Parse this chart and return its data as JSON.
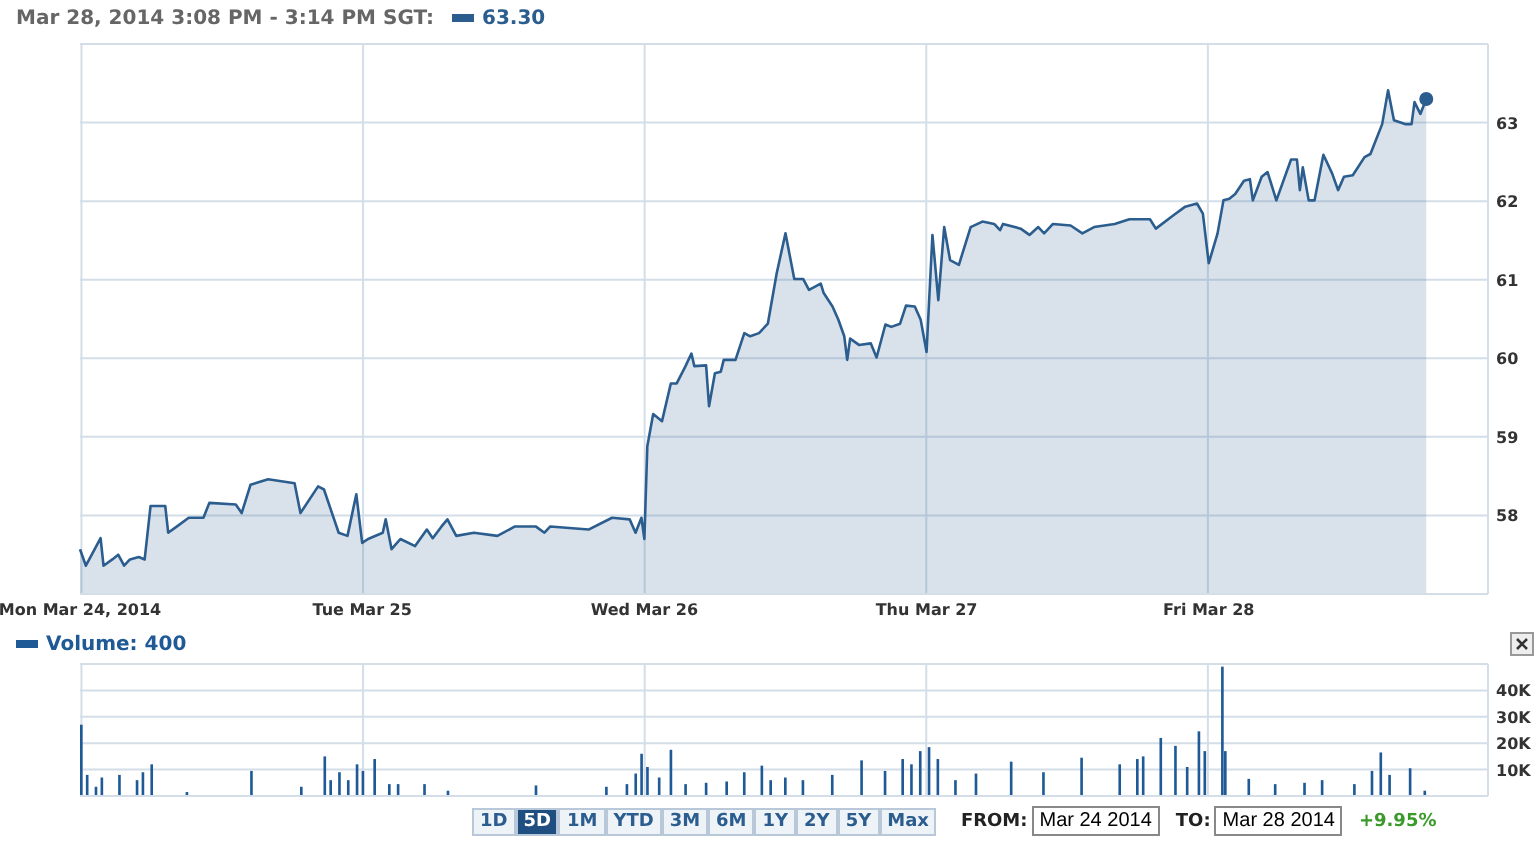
{
  "chart_data": [
    {
      "type": "area",
      "title": "Mar 28, 2014 3:08 PM - 3:14 PM SGT:",
      "legend": "top left",
      "grid": true,
      "categories": [
        "Mon Mar 24, 2014",
        null,
        null,
        null,
        null,
        null,
        null,
        null,
        null,
        null,
        null,
        null,
        null,
        null,
        null,
        null,
        null,
        null,
        null,
        null,
        null,
        null,
        null,
        null,
        null,
        null,
        null,
        null,
        null,
        null,
        null,
        null,
        null,
        null,
        null,
        null,
        null,
        null,
        null,
        null,
        null,
        null,
        null,
        null,
        null,
        null,
        null,
        null,
        null,
        null,
        null,
        null,
        null,
        null,
        null,
        null,
        null,
        null,
        null,
        null,
        null,
        null,
        null,
        null,
        null,
        null,
        null,
        null,
        null,
        null,
        null,
        null,
        null,
        null,
        null,
        null,
        null,
        null,
        null,
        null,
        null,
        null,
        null,
        null,
        null,
        null,
        null,
        null,
        null,
        null,
        null,
        null,
        null,
        null,
        null,
        null,
        "Tue Mar 25",
        null,
        null,
        null,
        null,
        null,
        null,
        null,
        null,
        null,
        null,
        null,
        null,
        null,
        null,
        null,
        null,
        null,
        null,
        null,
        null,
        null,
        null,
        null,
        null,
        null,
        null,
        null,
        null,
        null,
        null,
        null,
        null,
        null,
        null,
        null,
        null,
        null,
        null,
        null,
        null,
        null,
        null,
        null,
        null,
        null,
        null,
        null,
        null,
        null,
        null,
        null,
        null,
        null,
        null,
        null,
        null,
        null,
        null,
        null,
        null,
        null,
        null,
        null,
        null,
        null,
        null,
        null,
        null,
        null,
        null,
        null,
        null,
        null,
        null,
        null,
        null,
        null,
        null,
        null,
        null,
        null,
        null,
        null,
        null,
        null,
        null,
        null,
        null,
        null,
        null,
        null,
        null,
        null,
        null,
        null,
        "Wed Mar 26",
        null,
        null,
        null,
        null,
        null,
        null,
        null,
        null,
        null,
        null,
        null,
        null,
        null,
        null,
        null,
        null,
        null,
        null,
        null,
        null,
        null,
        null,
        null,
        null,
        null,
        null,
        null,
        null,
        null,
        null,
        null,
        null,
        null,
        null,
        null,
        null,
        null,
        null,
        null,
        null,
        null,
        null,
        null,
        null,
        null,
        null,
        null,
        null,
        null,
        null,
        null,
        null,
        null,
        null,
        null,
        null,
        null,
        null,
        null,
        null,
        null,
        null,
        null,
        null,
        null,
        null,
        null,
        null,
        null,
        null,
        null,
        null,
        null,
        null,
        null,
        null,
        null,
        null,
        null,
        null,
        null,
        null,
        null,
        null,
        null,
        null,
        null,
        null,
        null,
        null,
        null,
        null,
        null,
        null,
        null,
        "Thu Mar 27",
        null,
        null,
        null,
        null,
        null,
        null,
        null,
        null,
        null,
        null,
        null,
        null,
        null,
        null,
        null,
        null,
        null,
        null,
        null,
        null,
        null,
        null,
        null,
        null,
        null,
        null,
        null,
        null,
        null,
        null,
        null,
        null,
        null,
        null,
        null,
        null,
        null,
        null,
        null,
        null,
        null,
        null,
        null,
        null,
        null,
        null,
        null,
        null,
        null,
        null,
        null,
        null,
        null,
        null,
        null,
        null,
        null,
        null,
        null,
        null,
        null,
        null,
        null,
        null,
        null,
        null,
        null,
        null,
        null,
        null,
        null,
        null,
        null,
        null,
        null,
        null,
        null,
        null,
        null,
        null,
        null,
        null,
        null,
        null,
        null,
        null,
        null,
        null,
        null,
        null,
        null,
        null,
        null,
        null,
        null,
        "Fri Mar 28",
        null,
        null,
        null,
        null,
        null,
        null,
        null,
        null,
        null,
        null,
        null,
        null,
        null,
        null,
        null,
        null,
        null,
        null,
        null,
        null,
        null,
        null,
        null,
        null,
        null,
        null,
        null,
        null,
        null,
        null,
        null,
        null,
        null,
        null,
        null,
        null,
        null,
        null,
        null,
        null,
        null,
        null,
        null,
        null,
        null,
        null,
        null,
        null,
        null,
        null,
        null,
        null,
        null,
        null,
        null,
        null,
        null,
        null,
        null,
        null,
        null,
        null,
        null,
        null,
        null,
        null,
        null,
        null,
        null,
        null,
        null,
        null,
        null,
        null,
        null,
        null,
        null,
        null,
        null,
        null,
        null,
        null,
        null,
        null,
        null,
        null,
        null,
        null,
        null,
        null,
        null,
        null,
        null,
        null,
        null
      ],
      "ylim": [
        57,
        64
      ],
      "yticks": [
        58,
        59,
        60,
        61,
        62,
        63
      ],
      "series": [
        {
          "name": "63.30",
          "color": "#2c5d8f",
          "values": [
            57.57,
            null,
            57.36,
            null,
            null,
            57.57,
            null,
            57.71,
            57.36,
            null,
            null,
            57.44,
            null,
            57.5,
            null,
            57.36,
            null,
            57.44,
            null,
            null,
            57.47,
            null,
            57.44,
            null,
            58.12,
            null,
            null,
            null,
            null,
            58.12,
            57.78,
            null,
            null,
            57.86,
            null,
            null,
            null,
            57.97,
            null,
            null,
            null,
            null,
            57.97,
            null,
            58.16,
            null,
            null,
            null,
            null,
            null,
            null,
            null,
            null,
            58.14,
            null,
            58.03,
            null,
            null,
            58.39,
            null,
            null,
            null,
            null,
            null,
            58.46,
            null,
            null,
            null,
            null,
            null,
            null,
            null,
            null,
            58.41,
            null,
            58.03,
            null,
            null,
            null,
            null,
            null,
            58.37,
            null,
            58.33,
            null,
            null,
            null,
            null,
            57.78,
            null,
            null,
            57.74,
            null,
            null,
            58.27,
            null,
            57.65,
            null,
            57.7,
            null,
            null,
            null,
            null,
            57.78,
            57.95,
            null,
            57.57,
            null,
            null,
            57.7,
            null,
            null,
            null,
            null,
            57.61,
            null,
            null,
            null,
            57.82,
            null,
            57.71,
            null,
            null,
            57.86,
            null,
            57.95,
            null,
            null,
            57.74,
            null,
            null,
            null,
            null,
            null,
            57.78,
            null,
            null,
            null,
            null,
            null,
            null,
            null,
            57.74,
            null,
            null,
            null,
            null,
            null,
            57.86,
            null,
            null,
            null,
            null,
            null,
            null,
            57.86,
            null,
            null,
            57.78,
            null,
            57.86,
            null,
            null,
            null,
            null,
            null,
            null,
            null,
            null,
            null,
            null,
            null,
            null,
            57.82,
            null,
            null,
            null,
            null,
            null,
            null,
            null,
            57.97,
            null,
            null,
            null,
            null,
            null,
            57.95,
            null,
            57.78,
            null,
            57.97,
            57.7,
            58.88,
            null,
            59.29,
            null,
            null,
            59.2,
            null,
            null,
            59.68,
            null,
            59.68,
            null,
            null,
            59.9,
            null,
            60.06,
            59.9,
            null,
            null,
            null,
            59.91,
            59.39,
            null,
            59.81,
            null,
            59.83,
            59.98,
            null,
            null,
            null,
            59.98,
            null,
            null,
            60.32,
            null,
            60.28,
            null,
            null,
            60.32,
            null,
            null,
            60.44,
            null,
            null,
            61.08,
            null,
            null,
            61.59,
            null,
            null,
            61.01,
            null,
            null,
            61.01,
            null,
            60.87,
            null,
            null,
            null,
            60.95,
            60.83,
            null,
            null,
            60.66,
            null,
            60.49,
            null,
            60.28,
            59.98,
            60.25,
            null,
            null,
            60.17,
            null,
            null,
            null,
            60.19,
            null,
            60.01,
            null,
            null,
            60.43,
            null,
            60.4,
            null,
            null,
            60.44,
            null,
            60.67,
            null,
            null,
            60.66,
            null,
            60.49,
            null,
            60.08,
            null,
            61.57,
            null,
            60.74,
            null,
            61.67,
            null,
            61.25,
            null,
            null,
            61.19,
            null,
            null,
            null,
            61.67,
            null,
            null,
            null,
            61.74,
            null,
            null,
            null,
            61.71,
            null,
            61.63,
            61.71,
            null,
            null,
            null,
            null,
            null,
            61.65,
            null,
            null,
            61.57,
            null,
            null,
            61.67,
            null,
            61.59,
            null,
            null,
            61.71,
            null,
            null,
            null,
            null,
            null,
            61.69,
            null,
            null,
            null,
            61.59,
            null,
            null,
            null,
            61.67,
            null,
            null,
            null,
            null,
            null,
            null,
            61.71,
            null,
            null,
            null,
            null,
            61.77,
            null,
            null,
            null,
            null,
            null,
            null,
            61.77,
            null,
            61.65,
            null,
            null,
            null,
            null,
            null,
            61.82,
            null,
            null,
            null,
            61.93,
            null,
            null,
            null,
            61.97,
            null,
            61.84,
            null,
            61.21,
            null,
            null,
            61.59,
            null,
            62.01,
            null,
            62.03,
            null,
            62.09,
            null,
            null,
            62.26,
            null,
            62.28,
            62.01,
            null,
            null,
            62.31,
            null,
            62.37,
            null,
            null,
            62.01,
            null,
            null,
            null,
            null,
            62.53,
            null,
            62.53,
            62.14,
            62.43,
            null,
            62.01,
            null,
            62.01,
            null,
            null,
            62.59,
            null,
            null,
            62.35,
            null,
            62.14,
            null,
            62.31,
            null,
            null,
            62.33,
            null,
            null,
            null,
            62.56,
            null,
            62.6,
            null,
            null,
            null,
            62.98,
            null,
            63.41,
            null,
            63.03,
            null,
            null,
            null,
            62.98,
            null,
            62.98,
            63.26,
            null,
            63.11,
            null,
            63.3,
            null,
            null,
            null,
            null,
            null,
            null,
            null,
            null,
            null,
            null,
            null,
            null,
            null,
            null,
            null,
            null,
            null,
            null,
            null,
            null,
            null
          ]
        }
      ]
    },
    {
      "type": "bar",
      "legend": "top left",
      "grid": true,
      "tick_labels": "y",
      "categories": [
        null,
        null,
        null,
        null,
        null,
        null,
        null,
        null,
        null,
        null,
        null,
        null,
        null,
        null,
        null,
        null,
        null,
        null,
        null,
        null,
        null,
        null,
        null,
        null,
        null,
        null,
        null,
        null,
        null,
        null,
        null,
        null,
        null,
        null,
        null,
        null,
        null,
        null,
        null,
        null,
        null,
        null,
        null,
        null,
        null,
        null,
        null,
        null,
        null,
        null,
        null,
        null,
        null,
        null,
        null,
        null,
        null,
        null,
        null,
        null,
        null,
        null,
        null,
        null,
        null,
        null,
        null,
        null,
        null,
        null,
        null,
        null,
        null,
        null,
        null,
        null,
        null,
        null,
        null,
        null,
        null,
        null,
        null,
        null,
        null,
        null,
        null,
        null,
        null,
        null,
        null,
        null,
        null,
        null,
        null,
        null,
        null,
        null,
        null,
        null,
        null,
        null,
        null,
        null,
        null,
        null,
        null,
        null,
        null,
        null,
        null,
        null,
        null,
        null,
        null,
        null,
        null,
        null,
        null,
        null,
        null,
        null,
        null,
        null,
        null,
        null,
        null,
        null,
        null,
        null,
        null,
        null,
        null,
        null,
        null,
        null,
        null,
        null,
        null,
        null,
        null,
        null,
        null,
        null,
        null,
        null,
        null,
        null,
        null,
        null,
        null,
        null,
        null,
        null,
        null,
        null,
        null,
        null,
        null,
        null,
        null,
        null,
        null,
        null,
        null,
        null,
        null,
        null,
        null,
        null,
        null,
        null,
        null,
        null,
        null,
        null,
        null,
        null,
        null,
        null,
        null,
        null,
        null,
        null,
        null,
        null,
        null,
        null,
        null,
        null,
        null,
        null,
        null,
        null,
        null,
        null,
        null,
        null,
        null,
        null,
        null,
        null,
        null,
        null,
        null,
        null,
        null,
        null,
        null,
        null,
        null,
        null,
        null,
        null,
        null,
        null,
        null,
        null,
        null,
        null,
        null,
        null,
        null,
        null,
        null,
        null,
        null,
        null,
        null,
        null,
        null,
        null,
        null,
        null,
        null,
        null,
        null,
        null,
        null,
        null,
        null,
        null,
        null,
        null,
        null,
        null,
        null,
        null,
        null,
        null,
        null,
        null,
        null,
        null,
        null,
        null,
        null,
        null,
        null,
        null,
        null,
        null,
        null,
        null,
        null,
        null,
        null,
        null,
        null,
        null,
        null,
        null,
        null,
        null,
        null,
        null,
        null,
        null,
        null,
        null,
        null,
        null,
        null,
        null,
        null,
        null,
        null,
        null,
        null,
        null,
        null,
        null,
        null,
        null,
        null,
        null,
        null,
        null,
        null,
        null,
        null,
        null,
        null,
        null,
        null,
        null,
        null,
        null,
        null,
        null,
        null,
        null,
        null,
        null,
        null,
        null,
        null,
        null,
        null,
        null,
        null,
        null,
        null,
        null,
        null,
        null,
        null,
        null,
        null,
        null,
        null,
        null,
        null,
        null,
        null,
        null,
        null,
        null,
        null,
        null,
        null,
        null,
        null,
        null,
        null,
        null,
        null,
        null,
        null,
        null,
        null,
        null,
        null,
        null,
        null,
        null,
        null,
        null,
        null,
        null,
        null,
        null,
        null,
        null,
        null,
        null,
        null,
        null,
        null,
        null,
        null,
        null,
        null,
        null,
        null,
        null,
        null,
        null,
        null,
        null,
        null,
        null,
        null,
        null,
        null,
        null,
        null,
        null,
        null,
        null,
        null,
        null,
        null,
        null,
        null,
        null,
        null,
        null,
        null,
        null,
        null,
        null,
        null,
        null,
        null,
        null,
        null,
        null,
        null,
        null,
        null,
        null,
        null,
        null,
        null,
        null,
        null,
        null,
        null,
        null,
        null,
        null,
        null,
        null,
        null,
        null,
        null,
        null,
        null,
        null,
        null,
        null,
        null,
        null,
        null,
        null,
        null,
        null,
        null,
        null,
        null,
        null,
        null,
        null,
        null,
        null,
        null,
        null,
        null,
        null,
        null,
        null,
        null,
        null,
        null,
        null,
        null,
        null,
        null,
        null,
        null,
        null,
        null,
        null,
        null,
        null,
        null,
        null,
        null,
        null,
        null,
        null,
        null,
        null,
        null,
        null,
        null,
        null,
        null,
        null
      ],
      "ylim": [
        0,
        50000
      ],
      "yticks": [
        {
          "value": 10000,
          "label": "10K"
        },
        {
          "value": 20000,
          "label": "20K"
        },
        {
          "value": 30000,
          "label": "30K"
        },
        {
          "value": 40000,
          "label": "40K"
        }
      ],
      "series": [
        {
          "name": "Volume: 400",
          "color": "#1f5a96",
          "values": [
            27000,
            null,
            8000,
            null,
            null,
            3500,
            null,
            7000,
            null,
            null,
            null,
            null,
            null,
            8000,
            null,
            null,
            null,
            null,
            null,
            6000,
            null,
            9000,
            null,
            null,
            12000,
            null,
            null,
            null,
            null,
            null,
            null,
            null,
            null,
            null,
            null,
            null,
            1500,
            null,
            null,
            null,
            null,
            null,
            null,
            null,
            null,
            null,
            null,
            null,
            null,
            null,
            null,
            null,
            null,
            null,
            null,
            null,
            null,
            null,
            9500,
            null,
            null,
            null,
            null,
            null,
            null,
            null,
            null,
            null,
            null,
            null,
            null,
            null,
            null,
            null,
            null,
            3500,
            null,
            null,
            null,
            null,
            null,
            null,
            null,
            15000,
            null,
            6000,
            null,
            null,
            9000,
            null,
            null,
            6000,
            null,
            null,
            12000,
            null,
            9500,
            null,
            null,
            null,
            14000,
            null,
            null,
            null,
            null,
            4500,
            null,
            null,
            4500,
            null,
            null,
            null,
            null,
            null,
            null,
            null,
            null,
            4500,
            null,
            null,
            null,
            null,
            null,
            null,
            null,
            2000,
            null,
            null,
            null,
            null,
            null,
            null,
            null,
            null,
            null,
            null,
            null,
            null,
            null,
            null,
            null,
            null,
            null,
            null,
            null,
            null,
            null,
            null,
            null,
            null,
            null,
            null,
            null,
            null,
            null,
            4000,
            null,
            null,
            null,
            null,
            null,
            null,
            null,
            null,
            null,
            null,
            null,
            null,
            null,
            null,
            null,
            null,
            null,
            null,
            null,
            null,
            null,
            null,
            null,
            3500,
            null,
            null,
            null,
            null,
            null,
            null,
            4500,
            null,
            null,
            8500,
            null,
            16000,
            null,
            11000,
            null,
            null,
            null,
            7000,
            null,
            null,
            null,
            17500,
            null,
            null,
            null,
            null,
            4500,
            null,
            null,
            null,
            null,
            null,
            null,
            5000,
            null,
            null,
            null,
            null,
            null,
            null,
            5500,
            null,
            null,
            null,
            null,
            null,
            9000,
            null,
            null,
            null,
            null,
            null,
            11500,
            null,
            null,
            6000,
            null,
            null,
            null,
            null,
            7000,
            null,
            null,
            null,
            null,
            null,
            6000,
            null,
            null,
            null,
            null,
            null,
            null,
            null,
            null,
            null,
            8000,
            null,
            null,
            null,
            null,
            null,
            null,
            null,
            null,
            null,
            13500,
            null,
            null,
            null,
            null,
            null,
            null,
            null,
            9500,
            null,
            null,
            null,
            null,
            null,
            14000,
            null,
            null,
            12000,
            null,
            null,
            17000,
            null,
            null,
            18500,
            null,
            null,
            14000,
            null,
            null,
            null,
            null,
            null,
            6000,
            null,
            null,
            null,
            null,
            null,
            null,
            8500,
            null,
            null,
            null,
            null,
            null,
            null,
            null,
            null,
            null,
            null,
            null,
            13000,
            null,
            null,
            null,
            null,
            null,
            null,
            null,
            null,
            null,
            null,
            9000,
            null,
            null,
            null,
            null,
            null,
            null,
            null,
            null,
            null,
            null,
            null,
            null,
            14500,
            null,
            null,
            null,
            null,
            null,
            null,
            null,
            null,
            null,
            null,
            null,
            null,
            12000,
            null,
            null,
            null,
            null,
            null,
            14000,
            null,
            15000,
            null,
            null,
            null,
            null,
            null,
            22000,
            null,
            null,
            null,
            null,
            19000,
            null,
            null,
            null,
            11000,
            null,
            null,
            null,
            24500,
            null,
            17000,
            null,
            null,
            null,
            null,
            null,
            49000,
            17000,
            null,
            null,
            null,
            null,
            null,
            null,
            null,
            6500,
            null,
            null,
            null,
            null,
            null,
            null,
            null,
            null,
            4500,
            null,
            null,
            null,
            null,
            null,
            null,
            null,
            null,
            null,
            5000,
            null,
            null,
            null,
            null,
            null,
            6000,
            null,
            null,
            null,
            null,
            null,
            null,
            null,
            null,
            null,
            null,
            4500,
            null,
            null,
            null,
            null,
            null,
            9500,
            null,
            null,
            16500,
            null,
            null,
            8000,
            null,
            null,
            null,
            null,
            null,
            null,
            10500,
            null,
            null,
            null,
            null,
            2000,
            null,
            null,
            null,
            null,
            null,
            null,
            null,
            null,
            null,
            null,
            null,
            null,
            null,
            null,
            null,
            null,
            null,
            null,
            null,
            null,
            null
          ]
        }
      ],
      "annotations": [
        "1D",
        "5D",
        "1M",
        "YTD",
        "3M",
        "6M",
        "1Y",
        "2Y",
        "5Y",
        "Max",
        "FROM:",
        "Mar 24 2014",
        "TO:",
        "Mar 28 2014",
        "+9.95%"
      ]
    }
  ]
}
